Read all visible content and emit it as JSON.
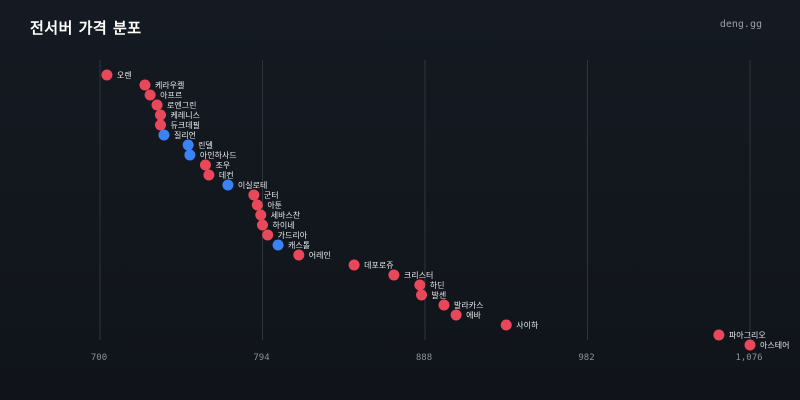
{
  "header": {
    "title": "전서버 가격 분포",
    "brand": "deng.gg"
  },
  "colors": {
    "background": "#12161d",
    "red": "#e8485a",
    "blue": "#3b82f6",
    "grid": "#2e343d"
  },
  "chart_data": {
    "type": "scatter",
    "title": "전서버 가격 분포",
    "xlabel": "",
    "ylabel": "",
    "xlim": [
      700,
      1076
    ],
    "x_ticks": [
      {
        "value": 700,
        "label": "700"
      },
      {
        "value": 794,
        "label": "794"
      },
      {
        "value": 888,
        "label": "888"
      },
      {
        "value": 982,
        "label": "982"
      },
      {
        "value": 1076,
        "label": "1,076"
      }
    ],
    "grid": true,
    "legend": "none",
    "points": [
      {
        "label": "오렌",
        "x": 704,
        "color": "red"
      },
      {
        "label": "케라우켈",
        "x": 726,
        "color": "red"
      },
      {
        "label": "아프르",
        "x": 729,
        "color": "red"
      },
      {
        "label": "로엔그린",
        "x": 733,
        "color": "red"
      },
      {
        "label": "케레니스",
        "x": 735,
        "color": "red"
      },
      {
        "label": "듀크데필",
        "x": 735,
        "color": "red"
      },
      {
        "label": "질리언",
        "x": 737,
        "color": "blue"
      },
      {
        "label": "린델",
        "x": 751,
        "color": "blue"
      },
      {
        "label": "아인하사드",
        "x": 752,
        "color": "blue"
      },
      {
        "label": "조우",
        "x": 761,
        "color": "red"
      },
      {
        "label": "데컨",
        "x": 763,
        "color": "red"
      },
      {
        "label": "이실로테",
        "x": 774,
        "color": "blue"
      },
      {
        "label": "군터",
        "x": 789,
        "color": "red"
      },
      {
        "label": "아툰",
        "x": 791,
        "color": "red"
      },
      {
        "label": "세바스찬",
        "x": 793,
        "color": "red"
      },
      {
        "label": "하이네",
        "x": 794,
        "color": "red"
      },
      {
        "label": "가드리아",
        "x": 797,
        "color": "red"
      },
      {
        "label": "캐스톨",
        "x": 803,
        "color": "blue"
      },
      {
        "label": "어레인",
        "x": 815,
        "color": "red"
      },
      {
        "label": "데포로쥬",
        "x": 847,
        "color": "red"
      },
      {
        "label": "크리스터",
        "x": 870,
        "color": "red"
      },
      {
        "label": "하딘",
        "x": 885,
        "color": "red"
      },
      {
        "label": "발센",
        "x": 886,
        "color": "red"
      },
      {
        "label": "발라카스",
        "x": 899,
        "color": "red"
      },
      {
        "label": "에바",
        "x": 906,
        "color": "red"
      },
      {
        "label": "사이하",
        "x": 935,
        "color": "red"
      },
      {
        "label": "파아그리오",
        "x": 1058,
        "color": "red"
      },
      {
        "label": "아스테어",
        "x": 1076,
        "color": "red"
      }
    ]
  }
}
